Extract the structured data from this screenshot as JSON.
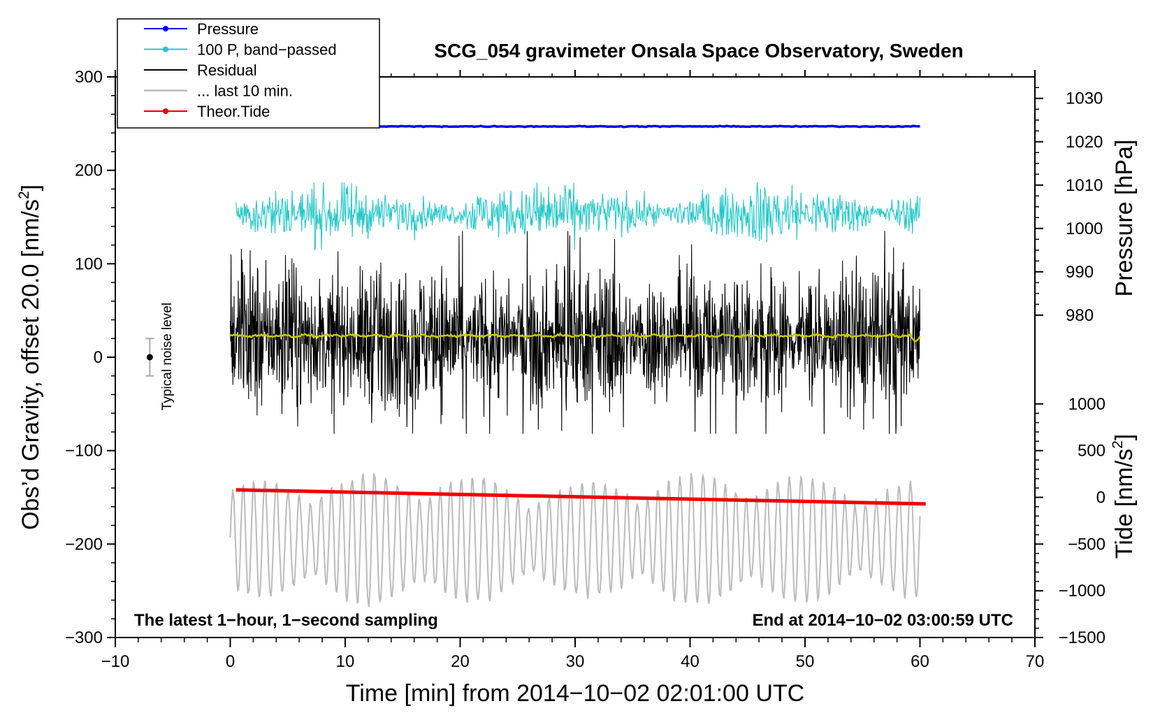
{
  "chart_data": {
    "type": "line",
    "title": "SCG_054 gravimeter Onsala Space Observatory, Sweden",
    "xlabel": "Time [min] from 2014−10−02 02:01:00 UTC",
    "ylabel": "Obs’d Gravity, offset 20.0 [nm/s²]",
    "ylabel_main": "Obs’d Gravity, offset 20.0 [nm/s",
    "ylabel_sup": "2",
    "ylabel_close": "]",
    "y2label": "Pressure [hPa]",
    "y3label_main": "Tide [nm/s",
    "y3label_sup": "2",
    "y3label_close": "]",
    "xlim": [
      -10,
      70
    ],
    "ylim": [
      -300,
      300
    ],
    "x_ticks": [
      -10,
      0,
      10,
      20,
      30,
      40,
      50,
      60,
      70
    ],
    "x_tick_labels": [
      "−10",
      "0",
      "10",
      "20",
      "30",
      "40",
      "50",
      "60",
      "70"
    ],
    "y_ticks": [
      -300,
      -200,
      -100,
      0,
      100,
      200,
      300
    ],
    "y_tick_labels": [
      "−300",
      "−200",
      "−100",
      "0",
      "100",
      "200",
      "300"
    ],
    "pressure_axis": {
      "ticks": [
        980,
        990,
        1000,
        1010,
        1020,
        1030
      ],
      "tick_labels": [
        "980",
        "990",
        "1000",
        "1010",
        "1020",
        "1030"
      ],
      "map": {
        "value_a": 980,
        "gravity_a": 45,
        "value_b": 1030,
        "gravity_b": 277
      }
    },
    "tide_axis": {
      "ticks": [
        -1500,
        -1000,
        -500,
        0,
        500,
        1000
      ],
      "tick_labels": [
        "−1500",
        "−1000",
        "−500",
        "0",
        "500",
        "1000"
      ],
      "map": {
        "value_a": -1500,
        "gravity_a": -300,
        "value_b": 1000,
        "gravity_b": -50
      }
    },
    "annotations": {
      "left_note": "The latest 1−hour, 1−second sampling",
      "right_note": "End at 2014−10−02 03:00:59 UTC",
      "noise_label": "Typical noise level",
      "noise_bar": {
        "x": -7,
        "center": 0,
        "low": -20,
        "high": 20
      }
    },
    "legend": [
      {
        "label": "Pressure",
        "color": "#0000ee",
        "marker": true,
        "gray": false
      },
      {
        "label": "100 P, band−passed",
        "color": "#20c8c8",
        "marker": true,
        "gray": false
      },
      {
        "label": "Residual",
        "color": "#000000",
        "marker": false,
        "gray": false
      },
      {
        "label": "... last 10 min.",
        "color": "#bbbbbb",
        "marker": false,
        "gray": true
      },
      {
        "label": "Theor.Tide",
        "color": "#ee0000",
        "marker": true,
        "gray": false
      }
    ],
    "series": [
      {
        "name": "Pressure",
        "color": "#0000ee",
        "x_start": 0,
        "x_end": 60,
        "level_gravity": 247,
        "pressure_hPa": 1023
      },
      {
        "name": "100 P, band−passed",
        "color": "#20c8c8",
        "x_start": 0.5,
        "x_end": 60,
        "center_gravity": 150,
        "min": 105,
        "max": 187
      },
      {
        "name": "Residual",
        "color": "#000000",
        "x_start": 0,
        "x_end": 60,
        "center_gravity": 20,
        "min": -82,
        "max": 135
      },
      {
        "name": "Residual smoothed",
        "color": "#c8c800",
        "x_start": 0,
        "x_end": 60,
        "center_gravity": 23
      },
      {
        "name": "... last 10 min.",
        "color": "#bbbbbb",
        "x_start": 0,
        "x_end": 60,
        "center_gravity": -195,
        "min": -268,
        "max": -95
      },
      {
        "name": "Theor.Tide",
        "color": "#ee0000",
        "x_start": 0.5,
        "x_end": 60.5,
        "y_start": -142,
        "y_end": -157,
        "tide_start": 80,
        "tide_end": -80
      }
    ]
  }
}
